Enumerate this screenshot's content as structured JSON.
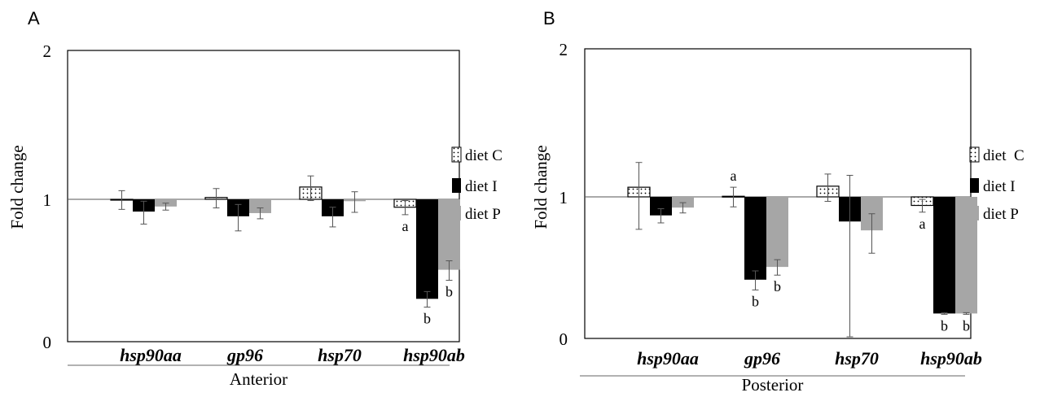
{
  "panels": [
    {
      "letter": "A",
      "group_label": "Anterior",
      "chart_data": {
        "type": "bar",
        "title": "",
        "xlabel": "Anterior",
        "ylabel": "Fold change",
        "ylim": [
          0,
          2
        ],
        "yscale": "log",
        "yticks": [
          "0",
          "1",
          "2"
        ],
        "baseline": 1,
        "grid": false,
        "legend_position": "right",
        "categories": [
          "hsp90aa",
          "gp96",
          "hsp70",
          "hsp90ab"
        ],
        "series": [
          {
            "name": "diet C",
            "values": [
              1.0,
              1.03,
              1.22,
              0.88
            ],
            "error": [
              0.15,
              0.16,
              0.24,
              0.1
            ],
            "fill": "dotted"
          },
          {
            "name": "diet I",
            "values": [
              0.82,
              0.76,
              0.76,
              0.2
            ],
            "error": [
              0.15,
              0.16,
              0.12,
              0.025
            ],
            "fill": "#000000"
          },
          {
            "name": "diet P",
            "values": [
              0.89,
              0.8,
              0.97,
              0.32
            ],
            "error": [
              0.05,
              0.07,
              0.16,
              0.05
            ],
            "fill": "#a6a6a6"
          }
        ],
        "annotations": [
          {
            "category": "hsp90ab",
            "series": "diet C",
            "text": "a"
          },
          {
            "category": "hsp90ab",
            "series": "diet I",
            "text": "b"
          },
          {
            "category": "hsp90ab",
            "series": "diet P",
            "text": "b"
          }
        ]
      }
    },
    {
      "letter": "B",
      "group_label": "Posterior",
      "chart_data": {
        "type": "bar",
        "title": "",
        "xlabel": "Posterior",
        "ylabel": "Fold change",
        "ylim": [
          0,
          2
        ],
        "yscale": "log",
        "yticks": [
          "0",
          "1",
          "2"
        ],
        "baseline": 1,
        "grid": false,
        "legend_position": "right",
        "categories": [
          "hsp90aa",
          "gp96",
          "hsp70",
          "hsp90ab"
        ],
        "series": [
          {
            "name": "diet  C",
            "values": [
              1.17,
              1.01,
              1.19,
              0.87
            ],
            "error": [
              0.58,
              0.16,
              0.26,
              0.09
            ],
            "fill": "dotted"
          },
          {
            "name": "diet I",
            "values": [
              0.74,
              0.26,
              0.67,
              0.15
            ],
            "error": [
              0.085,
              0.04,
              0.75,
              0.002
            ],
            "fill": "#000000"
          },
          {
            "name": "diet P",
            "values": [
              0.84,
              0.32,
              0.58,
              0.15
            ],
            "error": [
              0.07,
              0.04,
              0.18,
              0.002
            ],
            "fill": "#a6a6a6"
          }
        ],
        "annotations": [
          {
            "category": "gp96",
            "series": "diet  C",
            "text": "a"
          },
          {
            "category": "gp96",
            "series": "diet I",
            "text": "b"
          },
          {
            "category": "gp96",
            "series": "diet P",
            "text": "b"
          },
          {
            "category": "hsp90ab",
            "series": "diet  C",
            "text": "a"
          },
          {
            "category": "hsp90ab",
            "series": "diet I",
            "text": "b"
          },
          {
            "category": "hsp90ab",
            "series": "diet P",
            "text": "b"
          }
        ]
      }
    }
  ]
}
